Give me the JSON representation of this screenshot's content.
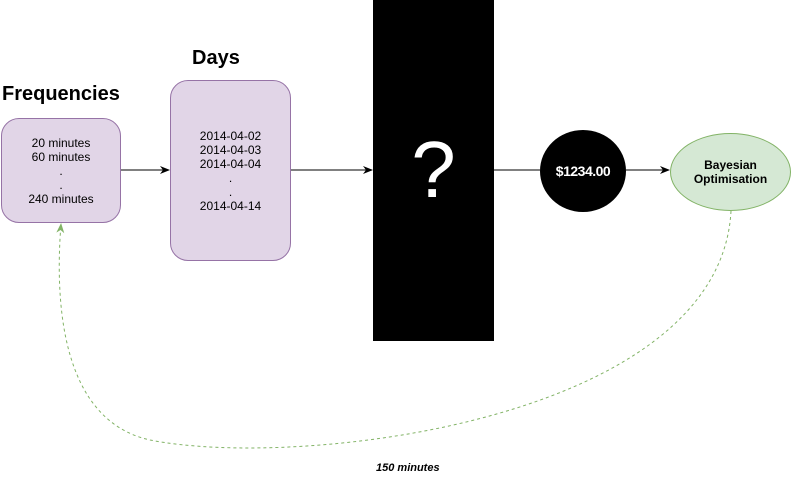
{
  "frequencies": {
    "heading": "Frequencies",
    "lines": [
      "20 minutes",
      "60 minutes",
      ".",
      ".",
      "240 minutes"
    ]
  },
  "days": {
    "heading": "Days",
    "lines": [
      "2014-04-02",
      "2014-04-03",
      "2014-04-04",
      ".",
      ".",
      "2014-04-14"
    ]
  },
  "black_box": {
    "label": "?"
  },
  "price": {
    "label": "$1234.00"
  },
  "optimiser": {
    "lines": [
      "Bayesian",
      "Optimisation"
    ]
  },
  "feedback_loop": {
    "label": "150 minutes"
  },
  "colors": {
    "purple_fill": "#e1d5e7",
    "purple_stroke": "#9673a6",
    "green_fill": "#d5e8d4",
    "green_stroke": "#82b366",
    "black": "#000000"
  }
}
